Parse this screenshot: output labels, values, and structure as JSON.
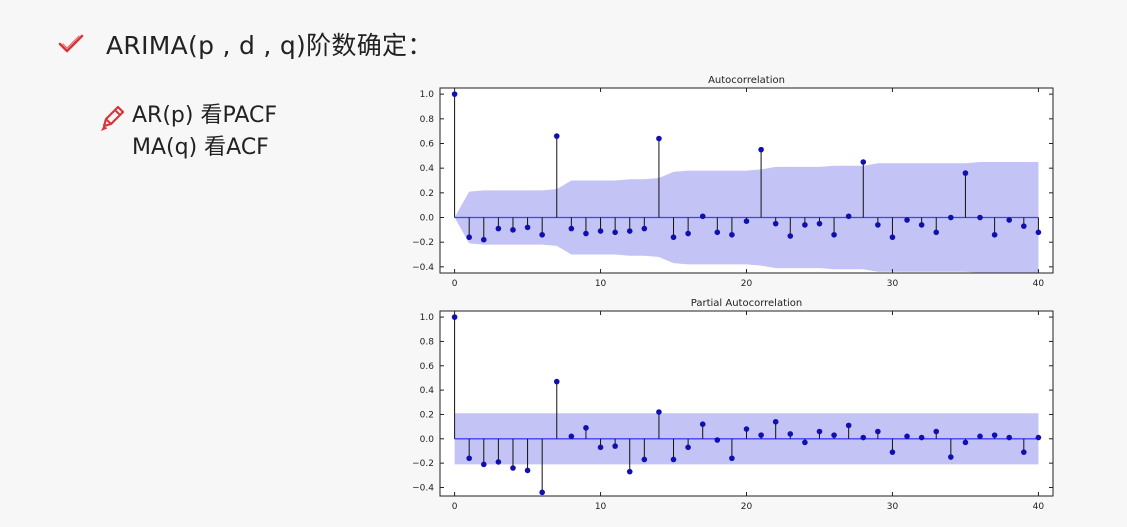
{
  "heading": {
    "check_icon": "check-icon",
    "text": "ARIMA(p , d , q)阶数确定："
  },
  "notes": {
    "pencil_icon": "pencil-icon",
    "line1": "AR(p)  看PACF",
    "line2": "MA(q)  看ACF"
  },
  "colors": {
    "accent_red": "#d9343a",
    "band_fill": "#b9b9f5",
    "stem": "#111111",
    "marker": "#1010b0",
    "zero_line": "#4040ff"
  },
  "chart_data": [
    {
      "type": "stem",
      "title": "Autocorrelation",
      "xlim": [
        -1,
        41
      ],
      "ylim": [
        -0.45,
        1.05
      ],
      "xticks": [
        0,
        10,
        20,
        30,
        40
      ],
      "yticks": [
        -0.4,
        -0.2,
        0.0,
        0.2,
        0.4,
        0.6,
        0.8,
        1.0
      ],
      "ytick_labels": [
        "−0.4",
        "−0.2",
        "0.0",
        "0.2",
        "0.4",
        "0.6",
        "0.8",
        "1.0"
      ],
      "grid": false,
      "x": [
        0,
        1,
        2,
        3,
        4,
        5,
        6,
        7,
        8,
        9,
        10,
        11,
        12,
        13,
        14,
        15,
        16,
        17,
        18,
        19,
        20,
        21,
        22,
        23,
        24,
        25,
        26,
        27,
        28,
        29,
        30,
        31,
        32,
        33,
        34,
        35,
        36,
        37,
        38,
        39,
        40
      ],
      "values": [
        1.0,
        -0.16,
        -0.18,
        -0.09,
        -0.1,
        -0.08,
        -0.14,
        0.66,
        -0.09,
        -0.13,
        -0.11,
        -0.12,
        -0.11,
        -0.09,
        0.64,
        -0.16,
        -0.13,
        0.01,
        -0.12,
        -0.14,
        -0.03,
        0.55,
        -0.05,
        -0.15,
        -0.06,
        -0.05,
        -0.14,
        0.01,
        0.45,
        -0.06,
        -0.16,
        -0.02,
        -0.06,
        -0.12,
        0.0,
        0.36,
        0.0,
        -0.14,
        -0.02,
        -0.07,
        -0.12
      ],
      "confidence_band": [
        0.0,
        0.21,
        0.22,
        0.22,
        0.22,
        0.22,
        0.22,
        0.23,
        0.3,
        0.3,
        0.3,
        0.3,
        0.31,
        0.31,
        0.32,
        0.37,
        0.38,
        0.38,
        0.38,
        0.38,
        0.38,
        0.39,
        0.41,
        0.41,
        0.41,
        0.41,
        0.42,
        0.42,
        0.42,
        0.44,
        0.44,
        0.44,
        0.44,
        0.44,
        0.44,
        0.44,
        0.45,
        0.45,
        0.45,
        0.45,
        0.45
      ]
    },
    {
      "type": "stem",
      "title": "Partial Autocorrelation",
      "xlim": [
        -1,
        41
      ],
      "ylim": [
        -0.47,
        1.05
      ],
      "xticks": [
        0,
        10,
        20,
        30,
        40
      ],
      "yticks": [
        -0.4,
        -0.2,
        0.0,
        0.2,
        0.4,
        0.6,
        0.8,
        1.0
      ],
      "ytick_labels": [
        "−0.4",
        "−0.2",
        "0.0",
        "0.2",
        "0.4",
        "0.6",
        "0.8",
        "1.0"
      ],
      "grid": false,
      "x": [
        0,
        1,
        2,
        3,
        4,
        5,
        6,
        7,
        8,
        9,
        10,
        11,
        12,
        13,
        14,
        15,
        16,
        17,
        18,
        19,
        20,
        21,
        22,
        23,
        24,
        25,
        26,
        27,
        28,
        29,
        30,
        31,
        32,
        33,
        34,
        35,
        36,
        37,
        38,
        39,
        40
      ],
      "values": [
        1.0,
        -0.16,
        -0.21,
        -0.19,
        -0.24,
        -0.26,
        -0.44,
        0.47,
        0.02,
        0.09,
        -0.07,
        -0.06,
        -0.27,
        -0.17,
        0.22,
        -0.17,
        -0.07,
        0.12,
        -0.01,
        -0.16,
        0.08,
        0.03,
        0.14,
        0.04,
        -0.03,
        0.06,
        0.03,
        0.11,
        0.01,
        0.06,
        -0.11,
        0.02,
        0.01,
        0.06,
        -0.15,
        -0.03,
        0.02,
        0.03,
        0.01,
        -0.11,
        0.01
      ],
      "confidence_band_constant": 0.21
    }
  ]
}
